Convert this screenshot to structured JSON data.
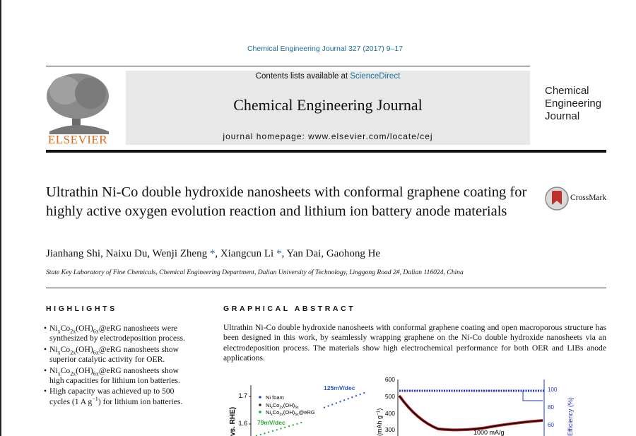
{
  "header": {
    "citation": "Chemical Engineering Journal 327 (2017) 9–17",
    "contents_prefix": "Contents lists available at ",
    "contents_link": "ScienceDirect",
    "journal_name": "Chemical Engineering Journal",
    "homepage": "journal homepage: www.elsevier.com/locate/cej",
    "publisher": "ELSEVIER",
    "logo_lines": [
      "Chemical",
      "Engineering",
      "Journal"
    ]
  },
  "article": {
    "title": "Ultrathin Ni-Co double hydroxide nanosheets with conformal graphene coating for highly active oxygen evolution reaction and lithium ion battery anode materials",
    "crossmark": "CrossMark",
    "authors": [
      "Jianhang Shi, Naixu Du, Wenji Zheng ",
      "*",
      ", Xiangcun Li ",
      "*",
      ", Yan Dai, Gaohong He"
    ],
    "affiliation": "State Key Laboratory of Fine Chemicals, Chemical Engineering Department, Dalian University of Technology, Linggong Road 2#, Dalian 116024, China"
  },
  "highlights": {
    "heading": "HIGHLIGHTS",
    "items": [
      [
        "Ni",
        {
          "sub": "x"
        },
        "Co",
        {
          "sub": "2x"
        },
        "(OH)",
        {
          "sub": "6x"
        },
        "@eRG nanosheets were synthesized by electrodeposition process."
      ],
      [
        "Ni",
        {
          "sub": "x"
        },
        "Co",
        {
          "sub": "2x"
        },
        "(OH)",
        {
          "sub": "6x"
        },
        "@eRG nanosheets show superior catalytic activity for OER."
      ],
      [
        "Ni",
        {
          "sub": "x"
        },
        "Co",
        {
          "sub": "2x"
        },
        "(OH)",
        {
          "sub": "6x"
        },
        "@eRG nanosheets show high capacities for lithium ion batteries."
      ],
      [
        "High capacity was achieved up to 500 cycles (1 A g",
        {
          "sup": "−1"
        },
        ") for lithium ion batteries."
      ]
    ]
  },
  "graphical_abstract": {
    "heading": "GRAPHICAL ABSTRACT",
    "text": "Ultrathin Ni-Co double hydroxide nanosheets with conformal graphene coating and open macroporous structure has been designed in this work, by seamlessly wrapping graphene on the Ni-Co double hydroxide nanosheets via an electrodeposition process. The materials show high electrochemical performance for both OER and LIBs anode applications.",
    "figure_left": {
      "yticks": [
        "1.7",
        "1.6"
      ],
      "ylabel": "vs. RHE)",
      "legend": [
        [
          "Ni foam"
        ],
        [
          "Ni",
          {
            "sub": "x"
          },
          "Co",
          {
            "sub": "2x"
          },
          "(OH)",
          {
            "sub": "6x"
          }
        ],
        [
          "Ni",
          {
            "sub": "x"
          },
          "Co",
          {
            "sub": "2x"
          },
          "(OH)",
          {
            "sub": "6x"
          },
          "@eRG"
        ]
      ],
      "annotations": [
        "125mV/dec",
        "79mV/dec"
      ]
    },
    "figure_right": {
      "yticks": [
        "600",
        "500",
        "400",
        "300"
      ],
      "y2ticks": [
        "100",
        "80",
        "60"
      ],
      "ylabel": [
        "(mAh g",
        {
          "sup": "−1"
        },
        ")"
      ],
      "y2label": "Efficiency (%)",
      "annotation": "1000 mA/g"
    }
  }
}
